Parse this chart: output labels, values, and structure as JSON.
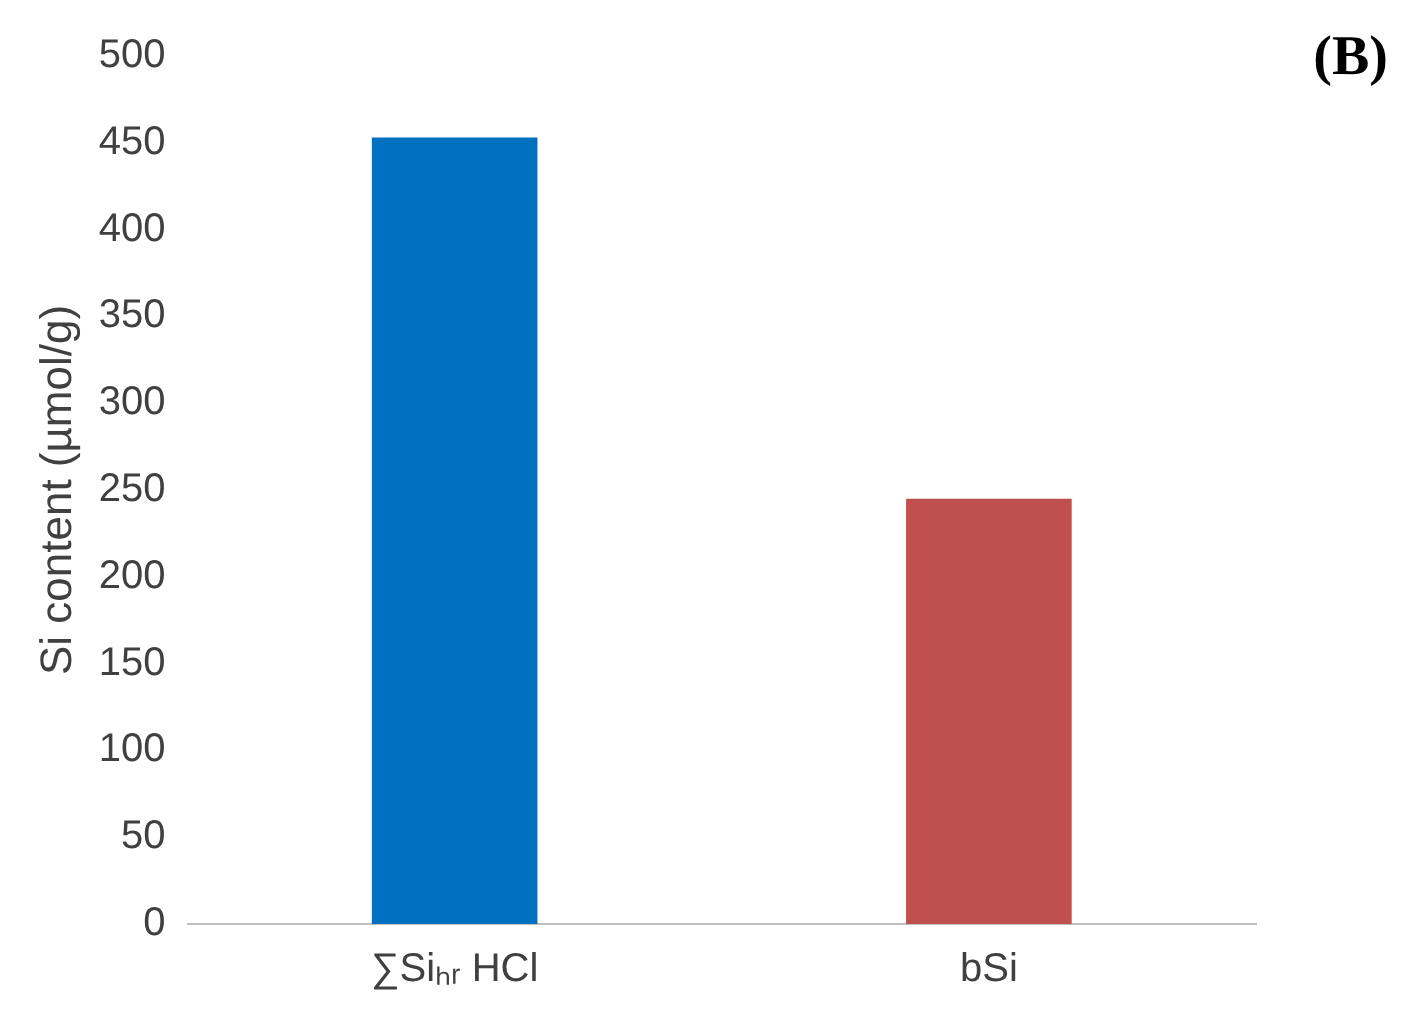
{
  "chart_data": {
    "type": "bar",
    "ylabel": "Si content (µmol/g)",
    "categories": [
      "∑Siₕᵣ HCl",
      "bSi"
    ],
    "values": [
      453,
      245
    ],
    "colors": [
      "#0070c0",
      "#c0504d"
    ],
    "ylim": [
      0,
      500
    ],
    "yticks": [
      0,
      50,
      100,
      150,
      200,
      250,
      300,
      350,
      400,
      450,
      500
    ],
    "grid": false,
    "annotations": [
      "(B)"
    ]
  }
}
